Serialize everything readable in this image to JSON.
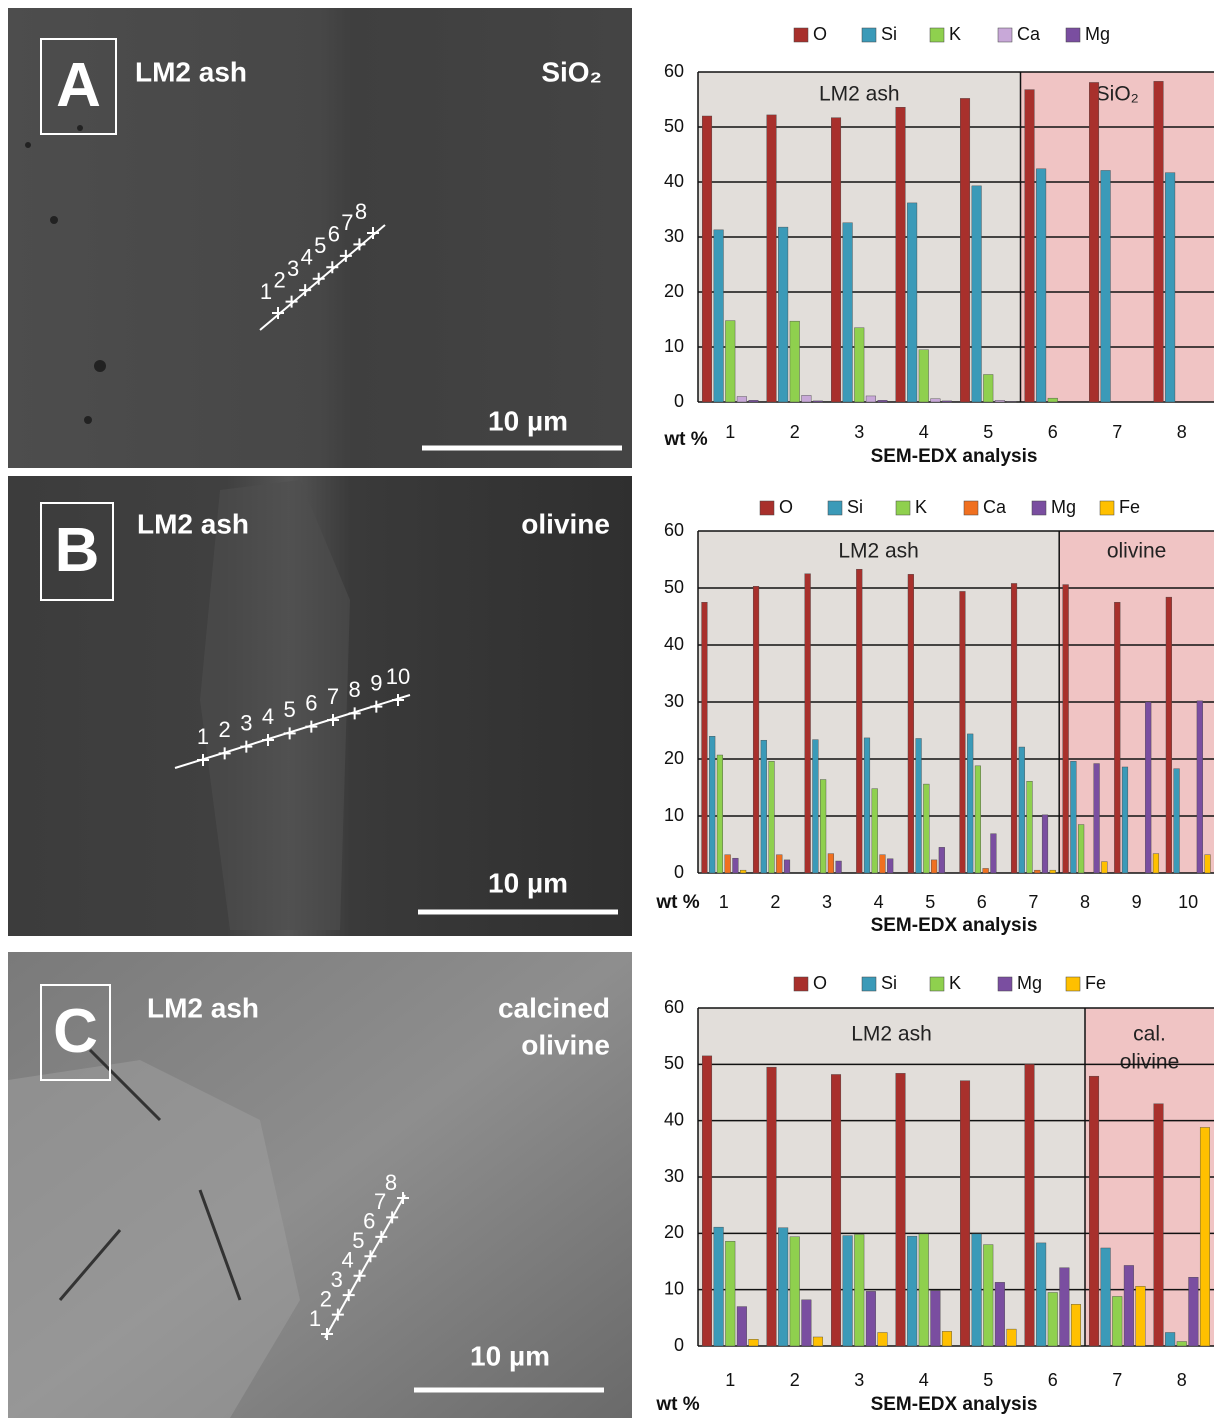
{
  "panels": [
    {
      "letter": "A",
      "left_label": "LM2 ash",
      "right_label": [
        "SiO₂"
      ],
      "scale_bar": "10 µm",
      "points": [
        "1",
        "2",
        "3",
        "4",
        "5",
        "6",
        "7",
        "8"
      ]
    },
    {
      "letter": "B",
      "left_label": "LM2 ash",
      "right_label": [
        "olivine"
      ],
      "scale_bar": "10 µm",
      "points": [
        "1",
        "2",
        "3",
        "4",
        "5",
        "6",
        "7",
        "8",
        "9",
        "10"
      ]
    },
    {
      "letter": "C",
      "left_label": "LM2 ash",
      "right_label": [
        "calcined",
        "olivine"
      ],
      "scale_bar": "10 µm",
      "points": [
        "1",
        "2",
        "3",
        "4",
        "5",
        "6",
        "7",
        "8"
      ]
    }
  ],
  "chart_data": [
    {
      "type": "bar",
      "x_label": "SEM-EDX analysis",
      "y_label": "wt %",
      "categories": [
        "1",
        "2",
        "3",
        "4",
        "5",
        "6",
        "7",
        "8"
      ],
      "ylim": [
        0,
        60
      ],
      "yticks": [
        0,
        10,
        20,
        30,
        40,
        50,
        60
      ],
      "grid": true,
      "regions": [
        {
          "label": [
            "LM2 ash"
          ],
          "count": 5,
          "color": "#e2deda"
        },
        {
          "label": [
            "SiO₂"
          ],
          "count": 3,
          "color": "#f0c4c4"
        }
      ],
      "series": [
        {
          "name": "O",
          "color": "#a8302c",
          "values": [
            52,
            52.2,
            51.7,
            53.6,
            55.2,
            56.8,
            58.1,
            58.3
          ]
        },
        {
          "name": "Si",
          "color": "#3b9ab8",
          "values": [
            31.3,
            31.8,
            32.6,
            36.2,
            39.3,
            42.4,
            42.1,
            41.7
          ]
        },
        {
          "name": "K",
          "color": "#8fd04e",
          "values": [
            14.8,
            14.7,
            13.5,
            9.5,
            5,
            0.7,
            0,
            0
          ]
        },
        {
          "name": "Ca",
          "color": "#c8a8d8",
          "values": [
            1,
            1.2,
            1.1,
            0.6,
            0.3,
            0,
            0,
            0
          ]
        },
        {
          "name": "Mg",
          "color": "#7a4ea0",
          "values": [
            0.3,
            0.2,
            0.3,
            0.2,
            0.1,
            0,
            0,
            0
          ]
        }
      ]
    },
    {
      "type": "bar",
      "x_label": "SEM-EDX analysis",
      "y_label": "wt %",
      "categories": [
        "1",
        "2",
        "3",
        "4",
        "5",
        "6",
        "7",
        "8",
        "9",
        "10"
      ],
      "ylim": [
        0,
        60
      ],
      "yticks": [
        0,
        10,
        20,
        30,
        40,
        50,
        60
      ],
      "grid": true,
      "regions": [
        {
          "label": [
            "LM2 ash"
          ],
          "count": 7,
          "color": "#e2deda"
        },
        {
          "label": [
            "olivine"
          ],
          "count": 3,
          "color": "#f0c4c4"
        }
      ],
      "series": [
        {
          "name": "O",
          "color": "#a8302c",
          "values": [
            47.5,
            50.3,
            52.5,
            53.3,
            52.4,
            49.4,
            50.8,
            50.6,
            47.5,
            48.4
          ]
        },
        {
          "name": "Si",
          "color": "#3b9ab8",
          "values": [
            24,
            23.3,
            23.4,
            23.7,
            23.6,
            24.4,
            22.1,
            19.6,
            18.6,
            18.3
          ]
        },
        {
          "name": "K",
          "color": "#8fd04e",
          "values": [
            20.7,
            19.6,
            16.4,
            14.8,
            15.6,
            18.8,
            16.1,
            8.5,
            0,
            0
          ]
        },
        {
          "name": "Ca",
          "color": "#f07020",
          "values": [
            3.2,
            3.2,
            3.4,
            3.2,
            2.3,
            0.8,
            0.5,
            0,
            0,
            0
          ]
        },
        {
          "name": "Mg",
          "color": "#7a4ea0",
          "values": [
            2.6,
            2.3,
            2.1,
            2.5,
            4.5,
            6.9,
            10.2,
            19.2,
            30,
            30.2
          ]
        },
        {
          "name": "Fe",
          "color": "#ffc000",
          "values": [
            0.5,
            0,
            0,
            0,
            0,
            0,
            0.5,
            2,
            3.4,
            3.2
          ]
        }
      ]
    },
    {
      "type": "bar",
      "x_label": "SEM-EDX analysis",
      "y_label": "wt %",
      "categories": [
        "1",
        "2",
        "3",
        "4",
        "5",
        "6",
        "7",
        "8"
      ],
      "ylim": [
        0,
        60
      ],
      "yticks": [
        0,
        10,
        20,
        30,
        40,
        50,
        60
      ],
      "grid": true,
      "regions": [
        {
          "label": [
            "LM2 ash"
          ],
          "count": 6,
          "color": "#e2deda"
        },
        {
          "label": [
            "cal.",
            "olivine"
          ],
          "count": 2,
          "color": "#f0c4c4"
        }
      ],
      "series": [
        {
          "name": "O",
          "color": "#a8302c",
          "values": [
            51.5,
            49.5,
            48.2,
            48.4,
            47.1,
            50,
            47.9,
            43
          ]
        },
        {
          "name": "Si",
          "color": "#3b9ab8",
          "values": [
            21.1,
            21,
            19.6,
            19.5,
            19.9,
            18.3,
            17.4,
            2.4
          ]
        },
        {
          "name": "K",
          "color": "#8fd04e",
          "values": [
            18.6,
            19.4,
            19.8,
            19.9,
            18,
            9.5,
            8.8,
            0.8
          ]
        },
        {
          "name": "Mg",
          "color": "#7a4ea0",
          "values": [
            7,
            8.2,
            9.7,
            9.8,
            11.3,
            13.9,
            14.3,
            12.2
          ]
        },
        {
          "name": "Fe",
          "color": "#ffc000",
          "values": [
            1.2,
            1.6,
            2.4,
            2.6,
            3,
            7.4,
            10.6,
            38.8
          ]
        }
      ]
    }
  ]
}
